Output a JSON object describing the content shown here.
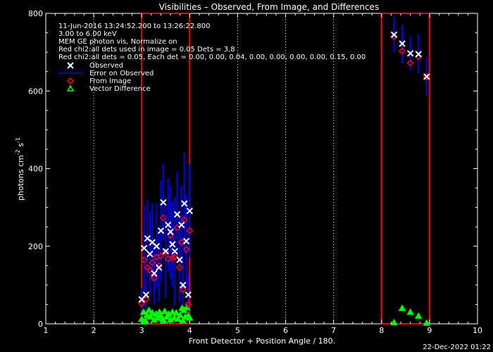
{
  "chart_data": {
    "type": "scatter",
    "title": "Visibilities – Observed, From Image, and Differences",
    "xlabel": "Front Detector + Position Angle / 180.",
    "ylabel": "photons cm-2 s-1",
    "xlim": [
      1,
      10
    ],
    "ylim": [
      0,
      800
    ],
    "xticks": [
      "1",
      "2",
      "3",
      "4",
      "5",
      "6",
      "7",
      "8",
      "9",
      "10"
    ],
    "yticks": [
      "0",
      "200",
      "400",
      "600",
      "800"
    ],
    "grid": "dotted vertical lines at each integer x",
    "annotations": [
      "11-Jun-2016 13:24:52.200 to 13:26:22.800",
      "3.00 to 6.00 keV",
      "MEM GE photon vis,   Normalize on",
      "Red chi2:all dets used in image = 0.05  Dets = 3,8",
      "Red chi2:all dets = 0.05,  Each det = 0.00, 0.00, 0.04, 0.00, 0.00, 0.00, 0.00, 0.15, 0.00"
    ],
    "legend": [
      {
        "label": "Observed",
        "marker": "x",
        "color": "#ffffff"
      },
      {
        "label": "Error on Observed",
        "marker": "line",
        "color": "#0000ff"
      },
      {
        "label": "From Image",
        "marker": "diamond",
        "color": "#ff0000"
      },
      {
        "label": "Vector Difference",
        "marker": "triangle",
        "color": "#00ff00"
      }
    ],
    "detector_boxes": [
      {
        "x": [
          3,
          4
        ],
        "y": [
          0,
          800
        ],
        "color": "#ff0000"
      },
      {
        "x": [
          8,
          9
        ],
        "y": [
          0,
          800
        ],
        "color": "#ff0000"
      }
    ],
    "series": [
      {
        "name": "Observed",
        "marker": "x",
        "color": "#ffffff",
        "points": [
          [
            3.0,
            63
          ],
          [
            3.05,
            195
          ],
          [
            3.09,
            75
          ],
          [
            3.12,
            220
          ],
          [
            3.17,
            180
          ],
          [
            3.22,
            210
          ],
          [
            3.26,
            130
          ],
          [
            3.31,
            200
          ],
          [
            3.36,
            145
          ],
          [
            3.4,
            240
          ],
          [
            3.45,
            313
          ],
          [
            3.5,
            187
          ],
          [
            3.55,
            255
          ],
          [
            3.6,
            237
          ],
          [
            3.64,
            205
          ],
          [
            3.69,
            187
          ],
          [
            3.74,
            282
          ],
          [
            3.79,
            165
          ],
          [
            3.83,
            255
          ],
          [
            3.86,
            100
          ],
          [
            3.89,
            310
          ],
          [
            3.93,
            213
          ],
          [
            3.97,
            75
          ],
          [
            4.0,
            291
          ],
          [
            8.26,
            745
          ],
          [
            8.43,
            722
          ],
          [
            8.6,
            697
          ],
          [
            8.77,
            695
          ],
          [
            8.94,
            637
          ]
        ]
      },
      {
        "name": "Error on Observed",
        "marker": "errorbar",
        "color": "#0000ff",
        "points": [
          [
            3.0,
            63,
            30
          ],
          [
            3.05,
            195,
            110
          ],
          [
            3.09,
            75,
            40
          ],
          [
            3.12,
            220,
            100
          ],
          [
            3.17,
            180,
            110
          ],
          [
            3.22,
            210,
            100
          ],
          [
            3.26,
            130,
            80
          ],
          [
            3.31,
            200,
            110
          ],
          [
            3.36,
            145,
            90
          ],
          [
            3.4,
            240,
            130
          ],
          [
            3.45,
            313,
            100
          ],
          [
            3.5,
            187,
            120
          ],
          [
            3.55,
            255,
            120
          ],
          [
            3.6,
            237,
            120
          ],
          [
            3.64,
            205,
            110
          ],
          [
            3.69,
            187,
            140
          ],
          [
            3.74,
            282,
            110
          ],
          [
            3.79,
            165,
            110
          ],
          [
            3.83,
            255,
            100
          ],
          [
            3.86,
            100,
            70
          ],
          [
            3.89,
            310,
            130
          ],
          [
            3.93,
            213,
            120
          ],
          [
            3.97,
            75,
            50
          ],
          [
            4.0,
            291,
            120
          ],
          [
            8.26,
            745,
            45
          ],
          [
            8.43,
            722,
            50
          ],
          [
            8.6,
            697,
            45
          ],
          [
            8.77,
            695,
            50
          ],
          [
            8.94,
            637,
            50
          ]
        ]
      },
      {
        "name": "From Image",
        "marker": "diamond",
        "color": "#ff0000",
        "points": [
          [
            3.0,
            52
          ],
          [
            3.05,
            165
          ],
          [
            3.09,
            63
          ],
          [
            3.12,
            145
          ],
          [
            3.17,
            138
          ],
          [
            3.22,
            158
          ],
          [
            3.26,
            118
          ],
          [
            3.31,
            172
          ],
          [
            3.36,
            150
          ],
          [
            3.4,
            175
          ],
          [
            3.45,
            273
          ],
          [
            3.5,
            185
          ],
          [
            3.55,
            168
          ],
          [
            3.6,
            228
          ],
          [
            3.64,
            170
          ],
          [
            3.69,
            172
          ],
          [
            3.74,
            248
          ],
          [
            3.79,
            145
          ],
          [
            3.83,
            210
          ],
          [
            3.86,
            88
          ],
          [
            3.89,
            268
          ],
          [
            3.93,
            192
          ],
          [
            3.97,
            50
          ],
          [
            4.0,
            240
          ],
          [
            8.26,
            740
          ],
          [
            8.43,
            703
          ],
          [
            8.6,
            672
          ],
          [
            8.77,
            688
          ],
          [
            8.94,
            636
          ]
        ]
      },
      {
        "name": "Vector Difference",
        "marker": "triangle",
        "color": "#00ff00",
        "points": [
          [
            3.0,
            12
          ],
          [
            3.04,
            30
          ],
          [
            3.08,
            8
          ],
          [
            3.11,
            22
          ],
          [
            3.15,
            35
          ],
          [
            3.18,
            18
          ],
          [
            3.22,
            28
          ],
          [
            3.26,
            10
          ],
          [
            3.3,
            25
          ],
          [
            3.33,
            15
          ],
          [
            3.37,
            30
          ],
          [
            3.4,
            20
          ],
          [
            3.44,
            12
          ],
          [
            3.48,
            32
          ],
          [
            3.52,
            18
          ],
          [
            3.56,
            25
          ],
          [
            3.6,
            10
          ],
          [
            3.64,
            30
          ],
          [
            3.68,
            15
          ],
          [
            3.72,
            28
          ],
          [
            3.76,
            12
          ],
          [
            3.8,
            22
          ],
          [
            3.84,
            40
          ],
          [
            3.88,
            35
          ],
          [
            3.91,
            18
          ],
          [
            3.94,
            42
          ],
          [
            3.97,
            20
          ],
          [
            4.0,
            15
          ],
          [
            3.06,
            5
          ],
          [
            3.46,
            8
          ],
          [
            3.86,
            8
          ],
          [
            8.26,
            3
          ],
          [
            8.43,
            40
          ],
          [
            8.6,
            30
          ],
          [
            8.77,
            20
          ],
          [
            8.94,
            2
          ]
        ]
      }
    ]
  },
  "footer": {
    "timestamp": "22-Dec-2022 01:22"
  }
}
